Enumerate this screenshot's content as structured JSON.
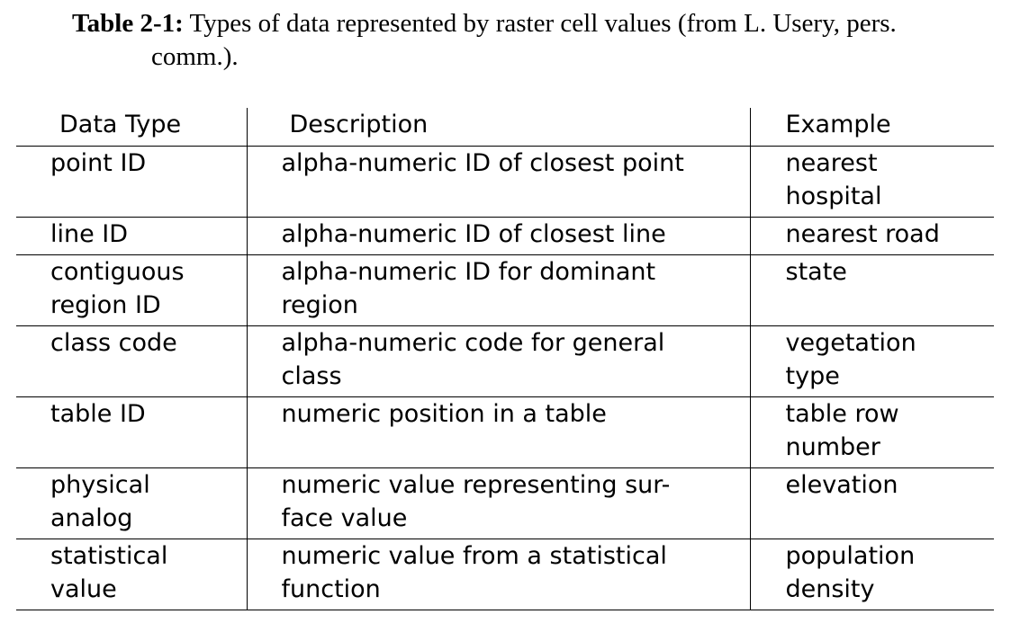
{
  "caption": {
    "label": "Table 2-1:",
    "text_line1": "Types of data represented by raster cell values (from L. Usery, pers.",
    "text_line2": "comm.)."
  },
  "table": {
    "headers": [
      "Data Type",
      "Description",
      "Example"
    ],
    "rows": [
      {
        "data_type": [
          "point ID"
        ],
        "description": [
          "alpha-numeric ID of closest point"
        ],
        "example": [
          "nearest",
          "hospital"
        ]
      },
      {
        "data_type": [
          "line ID"
        ],
        "description": [
          "alpha-numeric ID of closest line"
        ],
        "example": [
          "nearest road"
        ]
      },
      {
        "data_type": [
          "contiguous",
          "region ID"
        ],
        "description": [
          "alpha-numeric ID for dominant",
          "region"
        ],
        "example": [
          "state"
        ]
      },
      {
        "data_type": [
          "class code"
        ],
        "description": [
          "alpha-numeric code for general",
          "class"
        ],
        "example": [
          "vegetation",
          "type"
        ]
      },
      {
        "data_type": [
          "table ID"
        ],
        "description": [
          "numeric position in a table"
        ],
        "example": [
          "table row",
          "number"
        ]
      },
      {
        "data_type": [
          "physical",
          "analog"
        ],
        "description": [
          "numeric value representing sur-",
          "face value"
        ],
        "example": [
          "elevation"
        ]
      },
      {
        "data_type": [
          "statistical",
          "value"
        ],
        "description": [
          "numeric value from a statistical",
          "function"
        ],
        "example": [
          "population",
          "density"
        ]
      }
    ]
  }
}
